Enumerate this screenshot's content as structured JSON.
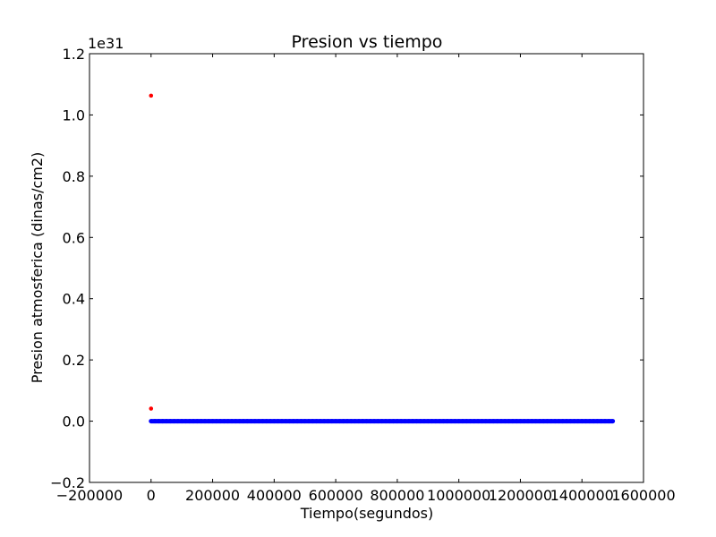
{
  "chart_data": {
    "type": "scatter",
    "title": "Presion vs tiempo",
    "xlabel": "Tiempo(segundos)",
    "ylabel": "Presion atmosferica (dinas/cm2)",
    "y_offset_label": "1e31",
    "xlim": [
      -200000,
      1600000
    ],
    "ylim": [
      -0.2,
      1.2
    ],
    "y_scale_factor": 1e+31,
    "x_ticks": [
      {
        "value": -200000,
        "label": "−200000"
      },
      {
        "value": 0,
        "label": "0"
      },
      {
        "value": 200000,
        "label": "200000"
      },
      {
        "value": 400000,
        "label": "400000"
      },
      {
        "value": 600000,
        "label": "600000"
      },
      {
        "value": 800000,
        "label": "800000"
      },
      {
        "value": 1000000,
        "label": "1000000"
      },
      {
        "value": 1200000,
        "label": "1200000"
      },
      {
        "value": 1400000,
        "label": "1400000"
      },
      {
        "value": 1600000,
        "label": "1600000"
      }
    ],
    "y_ticks": [
      {
        "value": -0.2,
        "label": "−0.2"
      },
      {
        "value": 0.0,
        "label": "0.0"
      },
      {
        "value": 0.2,
        "label": "0.2"
      },
      {
        "value": 0.4,
        "label": "0.4"
      },
      {
        "value": 0.6,
        "label": "0.6"
      },
      {
        "value": 0.8,
        "label": "0.8"
      },
      {
        "value": 1.0,
        "label": "1.0"
      },
      {
        "value": 1.2,
        "label": "1.2"
      }
    ],
    "grid": false,
    "series": [
      {
        "color": "#ff0000",
        "marker": "dot",
        "points": [
          {
            "x": 0,
            "y": 1.063
          },
          {
            "x": 0,
            "y": 0.041
          }
        ]
      },
      {
        "color": "#0000ff",
        "marker": "dot",
        "x_start": 0,
        "x_end": 1500000,
        "y_value": 0.0
      }
    ]
  }
}
